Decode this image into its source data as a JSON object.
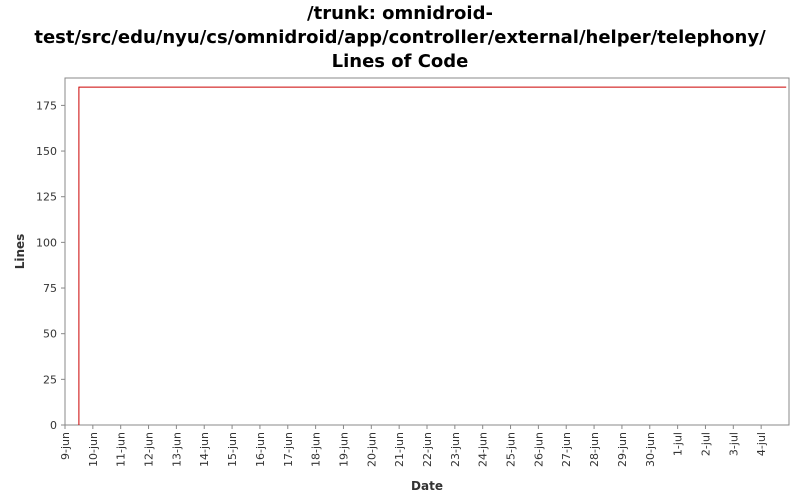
{
  "title_lines": [
    "/trunk: omnidroid-",
    "test/src/edu/nyu/cs/omnidroid/app/controller/external/helper/telephony/",
    "Lines of Code"
  ],
  "chart_data": {
    "type": "line",
    "title": "/trunk: omnidroid-test/src/edu/nyu/cs/omnidroid/app/controller/external/helper/telephony/ Lines of Code",
    "xlabel": "Date",
    "ylabel": "Lines",
    "x_tick_labels": [
      "9-jun",
      "10-jun",
      "11-jun",
      "12-jun",
      "13-jun",
      "14-jun",
      "15-jun",
      "16-jun",
      "17-jun",
      "18-jun",
      "19-jun",
      "20-jun",
      "21-jun",
      "22-jun",
      "23-jun",
      "24-jun",
      "25-jun",
      "26-jun",
      "27-jun",
      "28-jun",
      "29-jun",
      "30-jun",
      "1-jul",
      "2-jul",
      "3-jul",
      "4-jul"
    ],
    "xlim": [
      0,
      26.0
    ],
    "ylim": [
      0,
      190
    ],
    "y_ticks": [
      0,
      25,
      50,
      75,
      100,
      125,
      150,
      175
    ],
    "grid": false,
    "series": [
      {
        "color": "#cc0000",
        "points": [
          {
            "x": 0.5,
            "y": 0
          },
          {
            "x": 0.5,
            "y": 185
          },
          {
            "x": 25.9,
            "y": 185
          }
        ]
      }
    ]
  }
}
